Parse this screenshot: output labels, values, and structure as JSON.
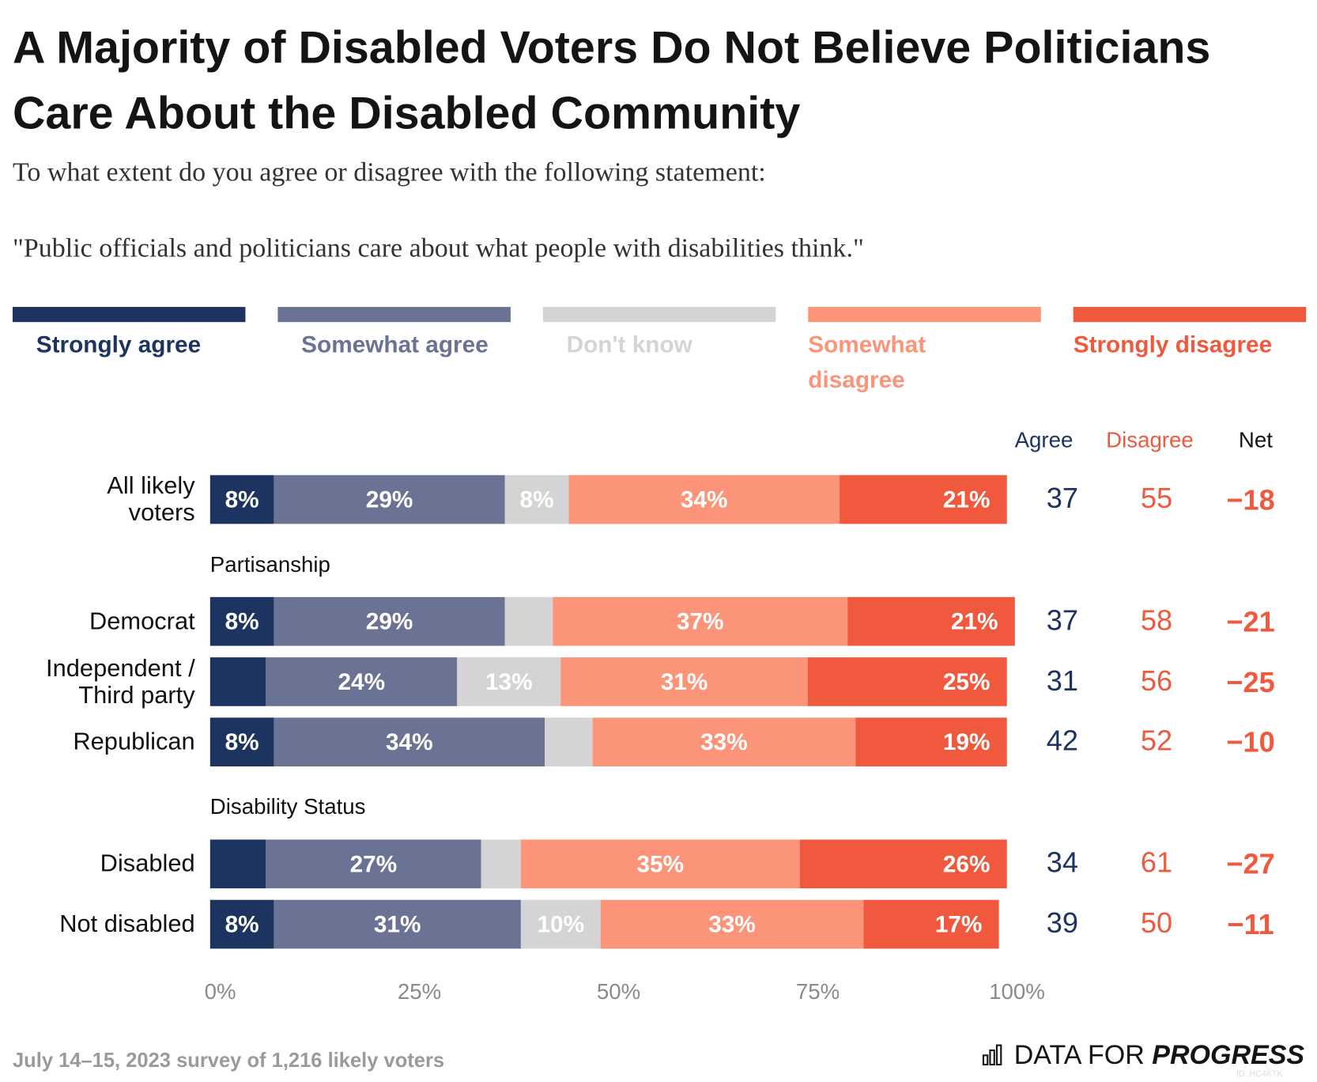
{
  "chart_data": {
    "type": "stacked-bar",
    "title": "A Majority of Disabled Voters Do Not Believe Politicians Care About the Disabled Community",
    "subtitle": "To what extent do you agree or disagree with the following statement:",
    "statement": "\"Public officials and politicians care about what people with disabilities think.\"",
    "categories": [
      "All likely voters",
      "Democrat",
      "Independent / Third party",
      "Republican",
      "Disabled",
      "Not disabled"
    ],
    "row_groups": [
      null,
      "Partisanship",
      null,
      null,
      "Disability Status",
      null
    ],
    "series": [
      {
        "name": "Strongly agree",
        "color": "#1d3461",
        "values": [
          8,
          8,
          7,
          8,
          7,
          8
        ],
        "value_labels": [
          "8%",
          "8%",
          null,
          "8%",
          null,
          "8%"
        ]
      },
      {
        "name": "Somewhat agree",
        "color": "#6a7394",
        "values": [
          29,
          29,
          24,
          34,
          27,
          31
        ],
        "value_labels": [
          "29%",
          "29%",
          "24%",
          "34%",
          "27%",
          "31%"
        ]
      },
      {
        "name": "Don't know",
        "color": "#d4d4d6",
        "values": [
          8,
          6,
          13,
          6,
          5,
          10
        ],
        "value_labels": [
          "8%",
          null,
          "13%",
          null,
          null,
          "10%"
        ]
      },
      {
        "name": "Somewhat disagree",
        "color": "#fc9479",
        "values": [
          34,
          37,
          31,
          33,
          35,
          33
        ],
        "value_labels": [
          "34%",
          "37%",
          "31%",
          "33%",
          "35%",
          "33%"
        ]
      },
      {
        "name": "Strongly disagree",
        "color": "#f0593e",
        "values": [
          21,
          21,
          25,
          19,
          26,
          17
        ],
        "value_labels": [
          "21%",
          "21%",
          "25%",
          "19%",
          "26%",
          "17%"
        ]
      }
    ],
    "xlim": [
      0,
      100
    ],
    "xticks": [
      {
        "value": 0,
        "label": "0%"
      },
      {
        "value": 25,
        "label": "25%"
      },
      {
        "value": 50,
        "label": "50%"
      },
      {
        "value": 75,
        "label": "75%"
      },
      {
        "value": 100,
        "label": "100%"
      }
    ],
    "summary": {
      "columns": [
        "Agree",
        "Disagree",
        "Net"
      ],
      "agree": [
        37,
        37,
        31,
        42,
        34,
        39
      ],
      "disagree": [
        55,
        58,
        56,
        52,
        61,
        50
      ],
      "net": [
        -18,
        -21,
        -25,
        -10,
        -27,
        -11
      ],
      "net_labels": [
        "−18",
        "−21",
        "−25",
        "−10",
        "−27",
        "−11"
      ]
    },
    "source": "July 14–15, 2023 survey of 1,216 likely voters",
    "brand": [
      "DATA FOR",
      "PROGRESS"
    ],
    "chart_id": "ID: HC4KTK"
  }
}
